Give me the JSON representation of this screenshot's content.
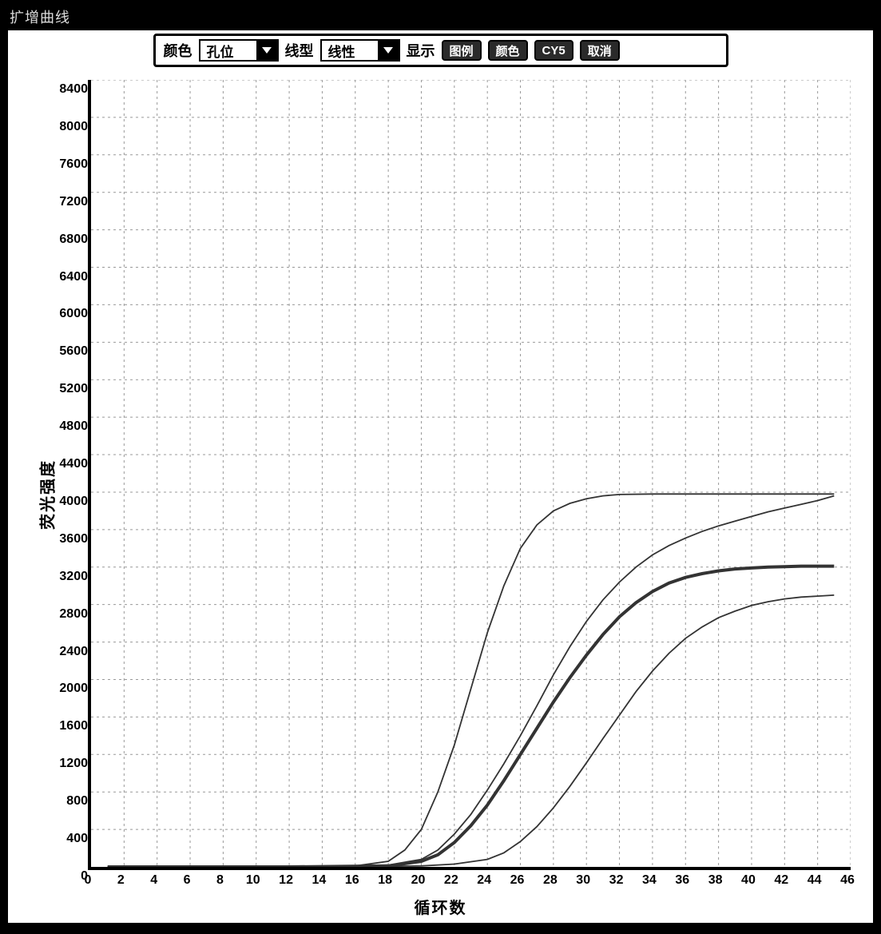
{
  "window": {
    "title": "扩增曲线"
  },
  "toolbar": {
    "color_label": "颜色",
    "color_select_value": "孔位",
    "type_label": "线型",
    "type_select_value": "线性",
    "display_label": "显示",
    "buttons": [
      "图例",
      "颜色",
      "CY5",
      "取消"
    ]
  },
  "chart": {
    "type": "line",
    "y_axis_label": "荧光强度",
    "x_axis_label": "循环数",
    "xlim": [
      0,
      46
    ],
    "ylim": [
      0,
      8400
    ],
    "x_tick_step": 2,
    "y_tick_step": 400,
    "x_ticks": [
      0,
      2,
      4,
      6,
      8,
      10,
      12,
      14,
      16,
      18,
      20,
      22,
      24,
      26,
      28,
      30,
      32,
      34,
      36,
      38,
      40,
      42,
      44,
      46
    ],
    "y_ticks": [
      0,
      400,
      800,
      1200,
      1600,
      2000,
      2400,
      2800,
      3200,
      3600,
      4000,
      4400,
      4800,
      5200,
      5600,
      6000,
      6400,
      6800,
      7200,
      7600,
      8000,
      8400
    ],
    "background_color": "#ffffff",
    "grid_color": "#999999",
    "grid_dash": "3,4",
    "axis_color": "#000000",
    "axis_width": 4,
    "tick_fontsize": 16,
    "label_fontsize": 20,
    "curves": [
      {
        "name": "curve1",
        "color": "#333333",
        "width": 1.8,
        "points": [
          [
            1,
            0
          ],
          [
            6,
            0
          ],
          [
            12,
            0
          ],
          [
            16,
            10
          ],
          [
            18,
            60
          ],
          [
            19,
            180
          ],
          [
            20,
            400
          ],
          [
            21,
            800
          ],
          [
            22,
            1300
          ],
          [
            23,
            1900
          ],
          [
            24,
            2500
          ],
          [
            25,
            3000
          ],
          [
            26,
            3400
          ],
          [
            27,
            3650
          ],
          [
            28,
            3800
          ],
          [
            29,
            3880
          ],
          [
            30,
            3930
          ],
          [
            31,
            3960
          ],
          [
            32,
            3975
          ],
          [
            34,
            3980
          ],
          [
            38,
            3980
          ],
          [
            42,
            3980
          ],
          [
            45,
            3980
          ]
        ]
      },
      {
        "name": "curve2",
        "color": "#333333",
        "width": 1.8,
        "points": [
          [
            1,
            0
          ],
          [
            10,
            0
          ],
          [
            16,
            5
          ],
          [
            18,
            20
          ],
          [
            20,
            80
          ],
          [
            21,
            180
          ],
          [
            22,
            350
          ],
          [
            23,
            560
          ],
          [
            24,
            820
          ],
          [
            25,
            1100
          ],
          [
            26,
            1400
          ],
          [
            27,
            1720
          ],
          [
            28,
            2050
          ],
          [
            29,
            2350
          ],
          [
            30,
            2620
          ],
          [
            31,
            2850
          ],
          [
            32,
            3040
          ],
          [
            33,
            3200
          ],
          [
            34,
            3330
          ],
          [
            35,
            3430
          ],
          [
            36,
            3510
          ],
          [
            37,
            3580
          ],
          [
            38,
            3640
          ],
          [
            39,
            3690
          ],
          [
            40,
            3740
          ],
          [
            41,
            3790
          ],
          [
            42,
            3830
          ],
          [
            43,
            3870
          ],
          [
            44,
            3910
          ],
          [
            45,
            3960
          ]
        ]
      },
      {
        "name": "curve3-thick",
        "color": "#222222",
        "width": 4,
        "points": [
          [
            1,
            0
          ],
          [
            12,
            0
          ],
          [
            18,
            10
          ],
          [
            20,
            60
          ],
          [
            21,
            130
          ],
          [
            22,
            260
          ],
          [
            23,
            440
          ],
          [
            24,
            660
          ],
          [
            25,
            920
          ],
          [
            26,
            1200
          ],
          [
            27,
            1480
          ],
          [
            28,
            1760
          ],
          [
            29,
            2020
          ],
          [
            30,
            2260
          ],
          [
            31,
            2480
          ],
          [
            32,
            2670
          ],
          [
            33,
            2820
          ],
          [
            34,
            2940
          ],
          [
            35,
            3030
          ],
          [
            36,
            3090
          ],
          [
            37,
            3130
          ],
          [
            38,
            3160
          ],
          [
            39,
            3180
          ],
          [
            40,
            3190
          ],
          [
            41,
            3200
          ],
          [
            42,
            3205
          ],
          [
            43,
            3210
          ],
          [
            44,
            3210
          ],
          [
            45,
            3210
          ]
        ]
      },
      {
        "name": "curve4",
        "color": "#333333",
        "width": 1.8,
        "points": [
          [
            1,
            0
          ],
          [
            14,
            0
          ],
          [
            20,
            10
          ],
          [
            22,
            30
          ],
          [
            24,
            80
          ],
          [
            25,
            150
          ],
          [
            26,
            270
          ],
          [
            27,
            430
          ],
          [
            28,
            630
          ],
          [
            29,
            860
          ],
          [
            30,
            1110
          ],
          [
            31,
            1370
          ],
          [
            32,
            1620
          ],
          [
            33,
            1870
          ],
          [
            34,
            2090
          ],
          [
            35,
            2280
          ],
          [
            36,
            2440
          ],
          [
            37,
            2560
          ],
          [
            38,
            2660
          ],
          [
            39,
            2730
          ],
          [
            40,
            2790
          ],
          [
            41,
            2830
          ],
          [
            42,
            2860
          ],
          [
            43,
            2880
          ],
          [
            44,
            2890
          ],
          [
            45,
            2900
          ]
        ]
      }
    ]
  }
}
